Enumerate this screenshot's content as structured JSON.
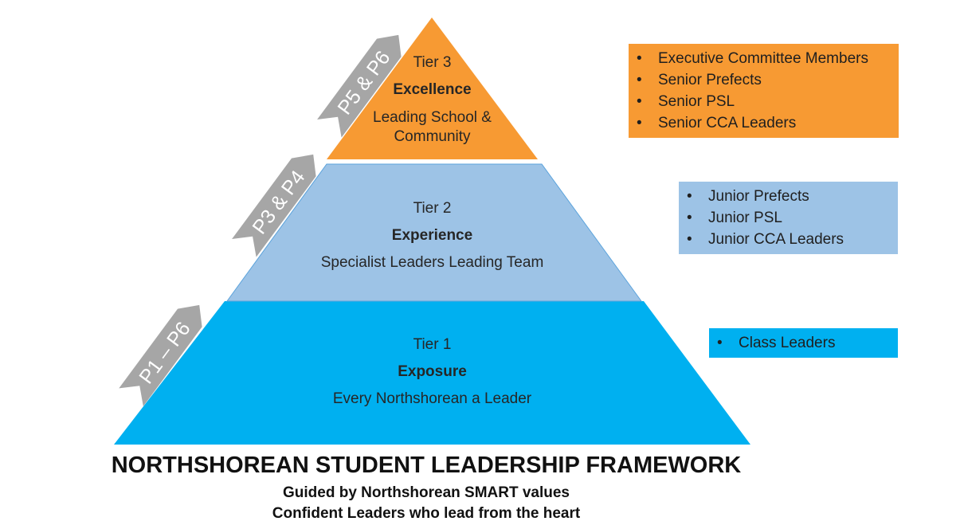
{
  "colors": {
    "tier3": "#F79A33",
    "tier2": "#9DC3E6",
    "tier1": "#00B0F0",
    "arrow": "#A6A6A6"
  },
  "tiers": [
    {
      "tier": "Tier 3",
      "name": "Excellence",
      "desc1": "Leading School &",
      "desc2": "Community"
    },
    {
      "tier": "Tier 2",
      "name": "Experience",
      "desc1": "Specialist Leaders Leading Team"
    },
    {
      "tier": "Tier 1",
      "name": "Exposure",
      "desc1": "Every Northshorean a Leader"
    }
  ],
  "arrows": [
    "P5 & P6",
    "P3 & P4",
    "P1 – P6"
  ],
  "boxes": {
    "tier3": [
      "Executive Committee Members",
      "Senior Prefects",
      "Senior PSL",
      "Senior CCA Leaders"
    ],
    "tier2": [
      "Junior Prefects",
      "Junior PSL",
      "Junior CCA Leaders"
    ],
    "tier1": [
      "Class Leaders"
    ]
  },
  "footer": {
    "title": "NORTHSHOREAN STUDENT LEADERSHIP FRAMEWORK",
    "line1": "Guided by Northshorean SMART values",
    "line2": "Confident Leaders who lead from the heart"
  }
}
